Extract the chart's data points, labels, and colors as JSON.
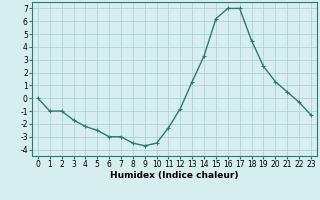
{
  "x": [
    0,
    1,
    2,
    3,
    4,
    5,
    6,
    7,
    8,
    9,
    10,
    11,
    12,
    13,
    14,
    15,
    16,
    17,
    18,
    19,
    20,
    21,
    22,
    23
  ],
  "y": [
    0,
    -1,
    -1,
    -1.7,
    -2.2,
    -2.5,
    -3,
    -3,
    -3.5,
    -3.7,
    -3.5,
    -2.3,
    -0.8,
    1.3,
    3.3,
    6.2,
    7.0,
    7.0,
    4.5,
    2.5,
    1.3,
    0.5,
    -0.3,
    -1.3
  ],
  "line_color": "#2d7a6e",
  "marker": "+",
  "marker_size": 3,
  "linewidth": 1.0,
  "xlabel": "Humidex (Indice chaleur)",
  "xlim": [
    -0.5,
    23.5
  ],
  "ylim": [
    -4.5,
    7.5
  ],
  "yticks": [
    -4,
    -3,
    -2,
    -1,
    0,
    1,
    2,
    3,
    4,
    5,
    6,
    7
  ],
  "xticks": [
    0,
    1,
    2,
    3,
    4,
    5,
    6,
    7,
    8,
    9,
    10,
    11,
    12,
    13,
    14,
    15,
    16,
    17,
    18,
    19,
    20,
    21,
    22,
    23
  ],
  "bg_color": "#d6eeee",
  "grid_color": "#aacccc",
  "tick_fontsize": 5.5,
  "label_fontsize": 6.5,
  "spine_color": "#2d7a6e"
}
